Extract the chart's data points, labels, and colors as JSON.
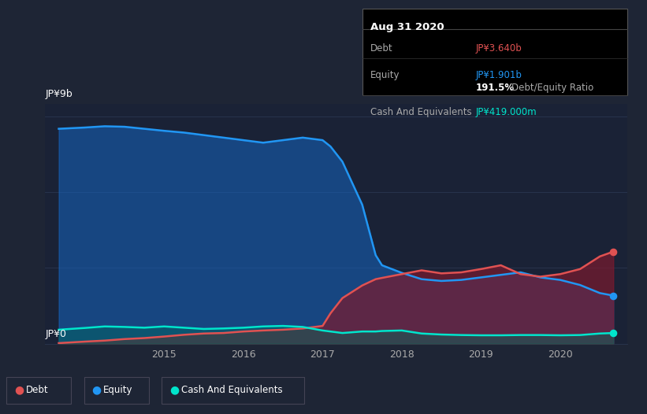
{
  "bg_color": "#1e2535",
  "plot_bg_color": "#1a2236",
  "ylabel_top": "JP¥9b",
  "ylabel_bottom": "JP¥0",
  "x_labels": [
    "2015",
    "2016",
    "2017",
    "2018",
    "2019",
    "2020"
  ],
  "tooltip": {
    "date": "Aug 31 2020",
    "debt_label": "Debt",
    "debt_value": "JP¥3.640b",
    "debt_color": "#e05252",
    "equity_label": "Equity",
    "equity_value": "JP¥1.901b",
    "equity_color": "#2196f3",
    "ratio_value": "191.5%",
    "ratio_label": "Debt/Equity Ratio",
    "cash_label": "Cash And Equivalents",
    "cash_value": "JP¥419.000m",
    "cash_color": "#00e5cc",
    "box_bg": "#000000",
    "box_border": "#444444"
  },
  "legend": [
    {
      "label": "Debt",
      "color": "#e05252"
    },
    {
      "label": "Equity",
      "color": "#2196f3"
    },
    {
      "label": "Cash And Equivalents",
      "color": "#00e5cc"
    }
  ],
  "years": [
    2013.67,
    2014.0,
    2014.25,
    2014.5,
    2014.75,
    2015.0,
    2015.25,
    2015.5,
    2015.75,
    2016.0,
    2016.25,
    2016.5,
    2016.75,
    2017.0,
    2017.1,
    2017.25,
    2017.5,
    2017.67,
    2017.75,
    2018.0,
    2018.25,
    2018.5,
    2018.75,
    2019.0,
    2019.25,
    2019.5,
    2019.75,
    2020.0,
    2020.25,
    2020.5,
    2020.67
  ],
  "debt": [
    0.02,
    0.08,
    0.12,
    0.18,
    0.22,
    0.28,
    0.35,
    0.4,
    0.42,
    0.48,
    0.52,
    0.55,
    0.6,
    0.7,
    1.2,
    1.8,
    2.3,
    2.55,
    2.6,
    2.75,
    2.9,
    2.78,
    2.82,
    2.95,
    3.1,
    2.75,
    2.65,
    2.75,
    2.95,
    3.45,
    3.64
  ],
  "equity": [
    8.5,
    8.55,
    8.6,
    8.58,
    8.5,
    8.42,
    8.35,
    8.25,
    8.15,
    8.05,
    7.95,
    8.05,
    8.15,
    8.05,
    7.8,
    7.2,
    5.5,
    3.5,
    3.1,
    2.8,
    2.55,
    2.48,
    2.52,
    2.62,
    2.72,
    2.82,
    2.62,
    2.52,
    2.32,
    2.0,
    1.9
  ],
  "cash": [
    0.55,
    0.62,
    0.68,
    0.66,
    0.63,
    0.68,
    0.63,
    0.58,
    0.6,
    0.63,
    0.68,
    0.7,
    0.66,
    0.52,
    0.48,
    0.42,
    0.48,
    0.48,
    0.5,
    0.52,
    0.4,
    0.36,
    0.34,
    0.33,
    0.33,
    0.34,
    0.34,
    0.33,
    0.34,
    0.4,
    0.42
  ],
  "ylim": [
    0,
    9.5
  ],
  "grid_color": "#2a3650",
  "line_width": 1.8,
  "equity_fill_color": "#1565c0",
  "equity_fill_alpha": 0.55,
  "debt_fill_color": "#7b1a2e",
  "debt_fill_alpha": 0.7,
  "cash_fill_color": "#00695c",
  "cash_fill_alpha": 0.45,
  "dot_color_debt": "#e05252",
  "dot_color_equity": "#2196f3",
  "dot_color_cash": "#00e5cc"
}
